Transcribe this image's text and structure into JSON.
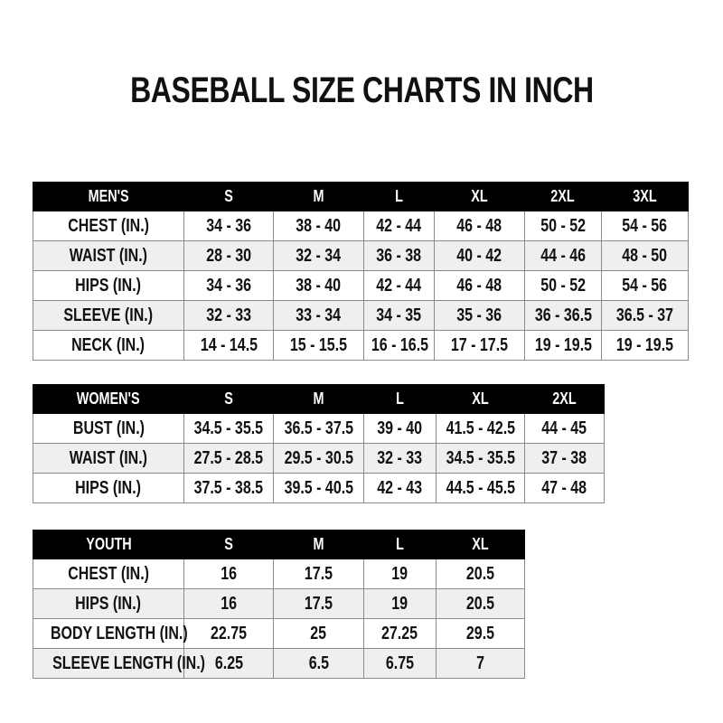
{
  "title": "BASEBALL SIZE CHARTS IN INCH",
  "tables": {
    "mens": {
      "header": [
        "MEN'S",
        "S",
        "M",
        "L",
        "XL",
        "2XL",
        "3XL"
      ],
      "rows": [
        [
          "CHEST (IN.)",
          "34 - 36",
          "38 - 40",
          "42 - 44",
          "46 - 48",
          "50 - 52",
          "54 - 56"
        ],
        [
          "WAIST (IN.)",
          "28 - 30",
          "32 - 34",
          "36 - 38",
          "40 - 42",
          "44 - 46",
          "48 - 50"
        ],
        [
          "HIPS (IN.)",
          "34 - 36",
          "38 - 40",
          "42 - 44",
          "46 - 48",
          "50 - 52",
          "54 - 56"
        ],
        [
          "SLEEVE (IN.)",
          "32 - 33",
          "33 - 34",
          "34 - 35",
          "35 - 36",
          "36 - 36.5",
          "36.5 - 37"
        ],
        [
          "NECK (IN.)",
          "14 - 14.5",
          "15 - 15.5",
          "16 - 16.5",
          "17 - 17.5",
          "19 - 19.5",
          "19 - 19.5"
        ]
      ]
    },
    "womens": {
      "header": [
        "WOMEN'S",
        "S",
        "M",
        "L",
        "XL",
        "2XL"
      ],
      "rows": [
        [
          "BUST (IN.)",
          "34.5 - 35.5",
          "36.5 - 37.5",
          "39 - 40",
          "41.5 - 42.5",
          "44 - 45"
        ],
        [
          "WAIST (IN.)",
          "27.5 - 28.5",
          "29.5 - 30.5",
          "32 - 33",
          "34.5 - 35.5",
          "37 - 38"
        ],
        [
          "HIPS (IN.)",
          "37.5 - 38.5",
          "39.5 - 40.5",
          "42 - 43",
          "44.5 - 45.5",
          "47 - 48"
        ]
      ]
    },
    "youth": {
      "header": [
        "YOUTH",
        "S",
        "M",
        "L",
        "XL"
      ],
      "rows": [
        [
          "CHEST (IN.)",
          "16",
          "17.5",
          "19",
          "20.5"
        ],
        [
          "HIPS (IN.)",
          "16",
          "17.5",
          "19",
          "20.5"
        ],
        [
          "BODY LENGTH (IN.)",
          "22.75",
          "25",
          "27.25",
          "29.5"
        ],
        [
          "SLEEVE LENGTH (IN.)",
          "6.25",
          "6.5",
          "6.75",
          "7"
        ]
      ]
    }
  }
}
